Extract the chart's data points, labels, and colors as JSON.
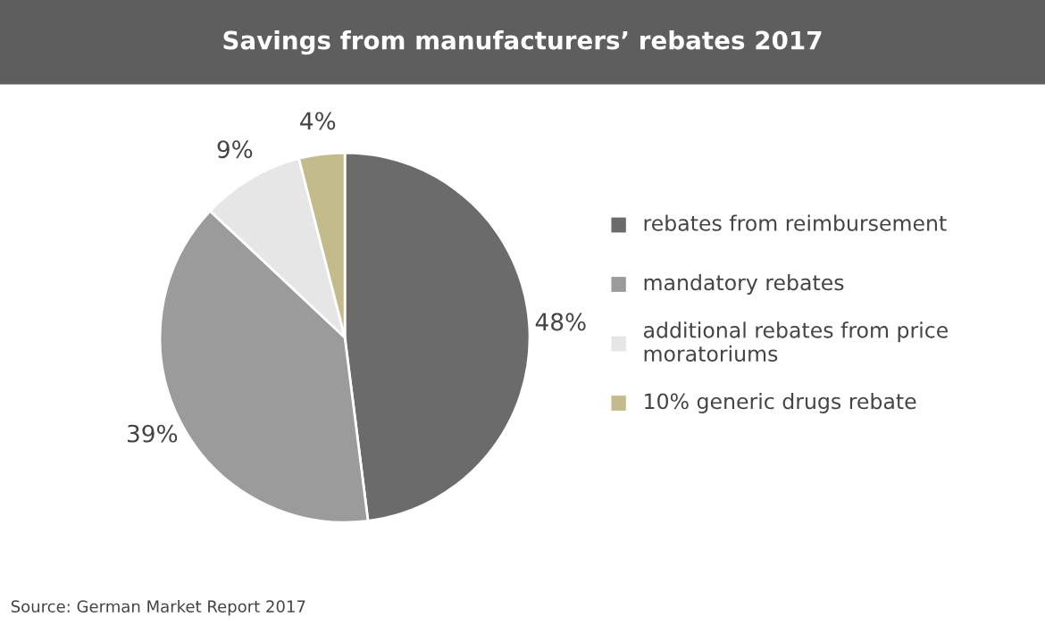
{
  "chart_data": {
    "type": "pie",
    "title": "Savings from manufacturers’ rebates 2017",
    "categories": [
      "rebates from reimbursement",
      "mandatory rebates",
      "additional rebates from price moratoriums",
      "10% generic drugs rebate"
    ],
    "values": [
      48,
      39,
      9,
      4
    ],
    "colors": [
      "#6b6b6b",
      "#9b9b9b",
      "#e6e6e6",
      "#c3bb8c"
    ],
    "value_labels": [
      "48%",
      "39%",
      "9%",
      "4%"
    ],
    "legend": "right",
    "annotations": [
      "Source: German Market Report 2017"
    ]
  }
}
